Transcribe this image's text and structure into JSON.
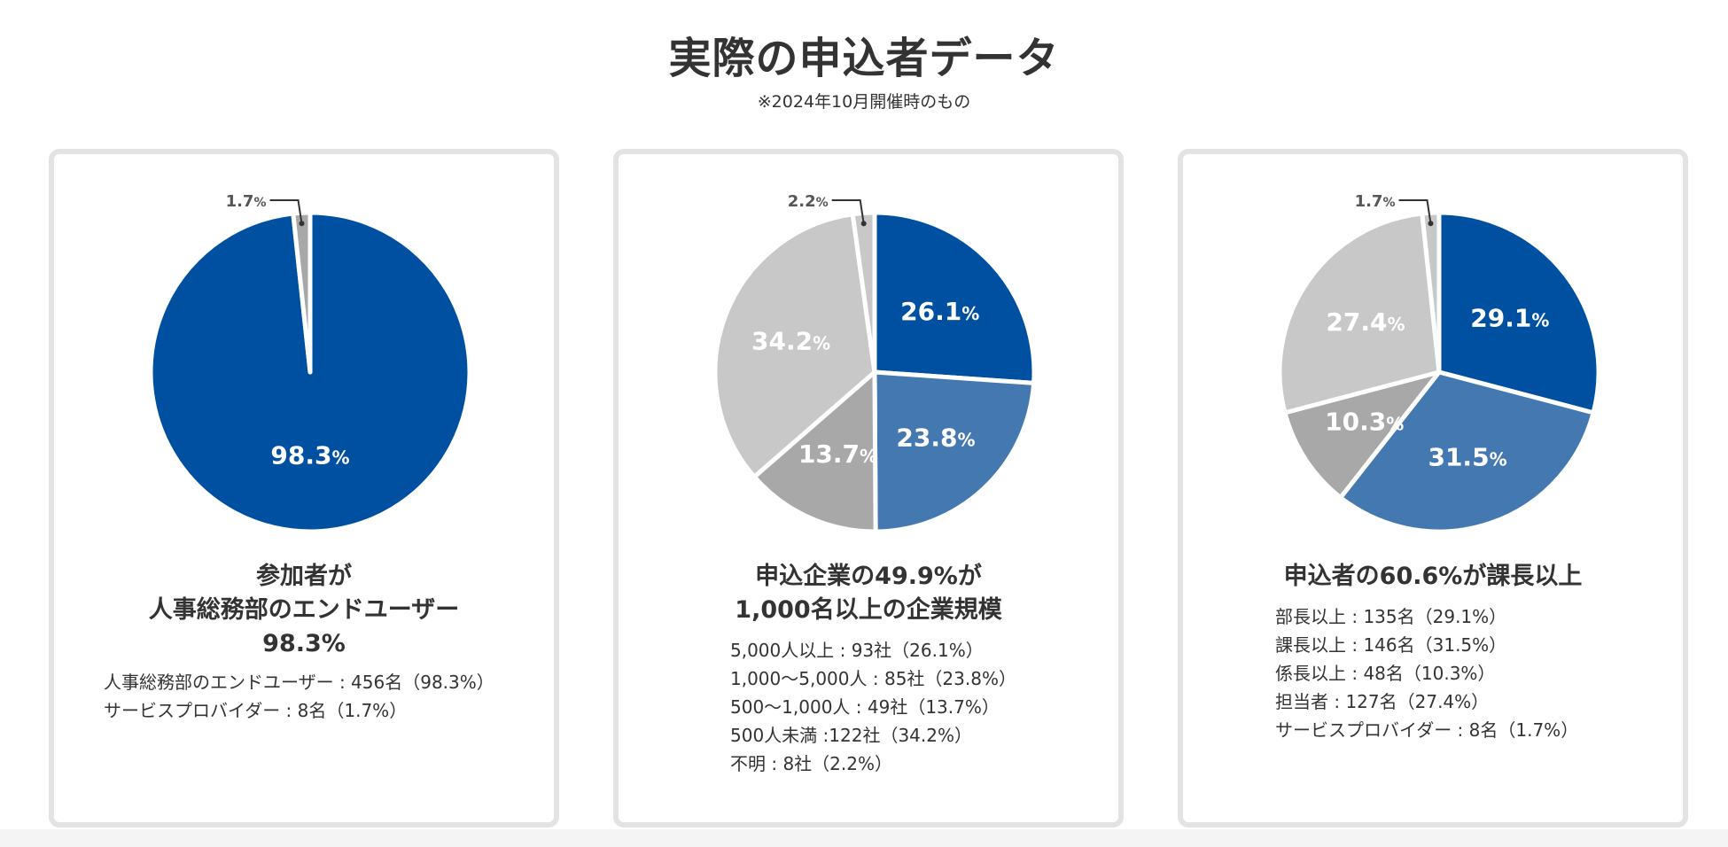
{
  "page": {
    "title": "実際の申込者データ",
    "note": "※2024年10月開催時のもの"
  },
  "colors": {
    "dark_blue": "#0050a2",
    "mid_blue": "#4478b0",
    "dark_gray": "#a8a8a8",
    "light_gray": "#c8c8c8",
    "text": "#333333",
    "card_border": "#e3e3e3"
  },
  "cards": [
    {
      "heading_lines": [
        "参加者が",
        "人事総務部のエンドユーザー",
        "98.3%"
      ],
      "details": [
        "人事総務部のエンドユーザー : 456名（98.3%）",
        "サービスプロバイダー : 8名（1.7%）"
      ]
    },
    {
      "heading_lines": [
        "申込企業の49.9%が",
        "1,000名以上の企業規模"
      ],
      "details": [
        "5,000人以上 : 93社（26.1%）",
        "1,000〜5,000人 : 85社（23.8%）",
        "500〜1,000人 : 49社（13.7%）",
        "500人未満 :122社（34.2%）",
        "不明 : 8社（2.2%）"
      ]
    },
    {
      "heading_lines": [
        "申込者の60.6%が課長以上"
      ],
      "details": [
        "部長以上 : 135名（29.1%）",
        "課長以上 : 146名（31.5%）",
        "係長以上 : 48名（10.3%）",
        "担当者 : 127名（27.4%）",
        "サービスプロバイダー : 8名（1.7%）"
      ]
    }
  ],
  "chart_data": [
    {
      "type": "pie",
      "title": "参加者が人事総務部のエンドユーザー98.3%",
      "slices": [
        {
          "label": "人事総務部のエンドユーザー",
          "value": 98.3,
          "value_label": "98.3",
          "color": "#0050a2",
          "callout": false
        },
        {
          "label": "サービスプロバイダー",
          "value": 1.7,
          "value_label": "1.7",
          "color": "#a8a8a8",
          "callout": true
        }
      ]
    },
    {
      "type": "pie",
      "title": "申込企業の49.9%が1,000名以上の企業規模",
      "slices": [
        {
          "label": "5,000人以上",
          "value": 26.1,
          "value_label": "26.1",
          "color": "#0050a2",
          "callout": false
        },
        {
          "label": "1,000〜5,000人",
          "value": 23.8,
          "value_label": "23.8",
          "color": "#4478b0",
          "callout": false
        },
        {
          "label": "500〜1,000人",
          "value": 13.7,
          "value_label": "13.7",
          "color": "#a8a8a8",
          "callout": false
        },
        {
          "label": "500人未満",
          "value": 34.2,
          "value_label": "34.2",
          "color": "#c8c8c8",
          "callout": false
        },
        {
          "label": "不明",
          "value": 2.2,
          "value_label": "2.2",
          "color": "#c8c8c8",
          "callout": true
        }
      ]
    },
    {
      "type": "pie",
      "title": "申込者の60.6%が課長以上",
      "slices": [
        {
          "label": "部長以上",
          "value": 29.1,
          "value_label": "29.1",
          "color": "#0050a2",
          "callout": false
        },
        {
          "label": "課長以上",
          "value": 31.5,
          "value_label": "31.5",
          "color": "#4478b0",
          "callout": false
        },
        {
          "label": "係長以上",
          "value": 10.3,
          "value_label": "10.3",
          "color": "#a8a8a8",
          "callout": false
        },
        {
          "label": "担当者",
          "value": 27.4,
          "value_label": "27.4",
          "color": "#c8c8c8",
          "callout": false
        },
        {
          "label": "サービスプロバイダー",
          "value": 1.7,
          "value_label": "1.7",
          "color": "#c8c8c8",
          "callout": true
        }
      ]
    }
  ]
}
